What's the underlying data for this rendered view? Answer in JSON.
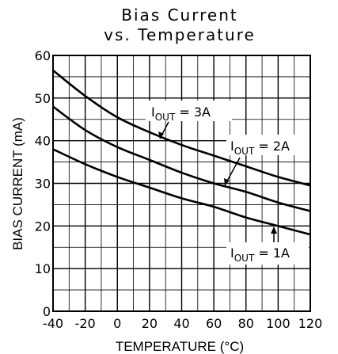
{
  "chart_data": {
    "type": "line",
    "title_line1": "Bias Current",
    "title_line2": "vs. Temperature",
    "xlabel": "TEMPERATURE (°C)",
    "ylabel": "BIAS CURRENT (mA)",
    "xlim": [
      -40,
      120
    ],
    "ylim": [
      0,
      60
    ],
    "x_ticks": [
      "-40",
      "-20",
      "0",
      "20",
      "40",
      "60",
      "80",
      "100",
      "120"
    ],
    "y_ticks": [
      "0",
      "10",
      "20",
      "30",
      "40",
      "50",
      "60"
    ],
    "grid": true,
    "series": [
      {
        "name": "IOUT = 3A",
        "x": [
          -40,
          -20,
          0,
          20,
          40,
          60,
          80,
          100,
          120
        ],
        "y": [
          56.5,
          50.5,
          45.5,
          42,
          39,
          36.5,
          34,
          31.5,
          29.5
        ]
      },
      {
        "name": "IOUT = 2A",
        "x": [
          -40,
          -20,
          0,
          20,
          40,
          60,
          80,
          100,
          120
        ],
        "y": [
          48,
          42.5,
          38.5,
          35.5,
          32.5,
          30,
          28,
          25.5,
          23.5
        ]
      },
      {
        "name": "IOUT = 1A",
        "x": [
          -40,
          -20,
          0,
          20,
          40,
          60,
          80,
          100,
          120
        ],
        "y": [
          38,
          34.5,
          31.5,
          29,
          26.5,
          24.5,
          22,
          20,
          18
        ]
      }
    ],
    "annotations": [
      {
        "main": "I",
        "sub": "OUT",
        "rest": " = 3A"
      },
      {
        "main": "I",
        "sub": "OUT",
        "rest": " = 2A"
      },
      {
        "main": "I",
        "sub": "OUT",
        "rest": " = 1A"
      }
    ]
  }
}
